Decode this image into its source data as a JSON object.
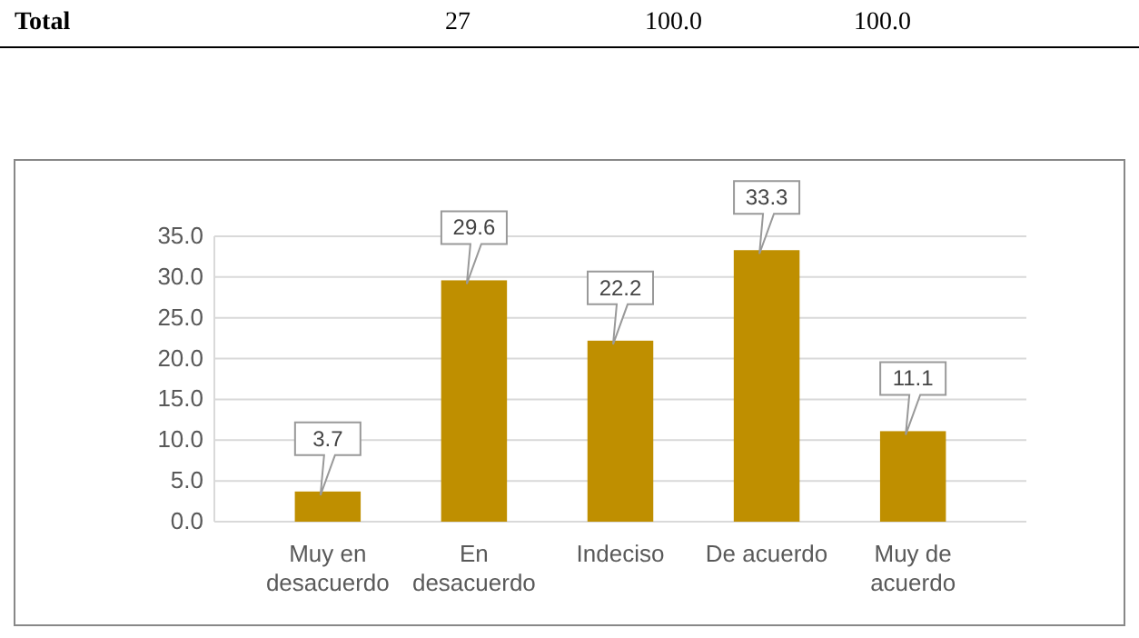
{
  "chart_data": {
    "type": "bar",
    "categories": [
      "Muy en desacuerdo",
      "En desacuerdo",
      "Indeciso",
      "De acuerdo",
      "Muy de acuerdo"
    ],
    "values": [
      3.7,
      29.6,
      22.2,
      33.3,
      11.1
    ],
    "color": "#bf8f00",
    "ylim": [
      0,
      35
    ],
    "yticks": [
      {
        "value": 0,
        "label": "0.0"
      },
      {
        "value": 5,
        "label": "5.0"
      },
      {
        "value": 10,
        "label": "10.0"
      },
      {
        "value": 15,
        "label": "15.0"
      },
      {
        "value": 20,
        "label": "20.0"
      },
      {
        "value": 25,
        "label": "25.0"
      },
      {
        "value": 30,
        "label": "30.0"
      },
      {
        "value": 35,
        "label": "35.0"
      }
    ],
    "grid": "y",
    "data_labels": true,
    "annotations": [
      "Total",
      "27",
      "100.0",
      "100.0"
    ]
  }
}
